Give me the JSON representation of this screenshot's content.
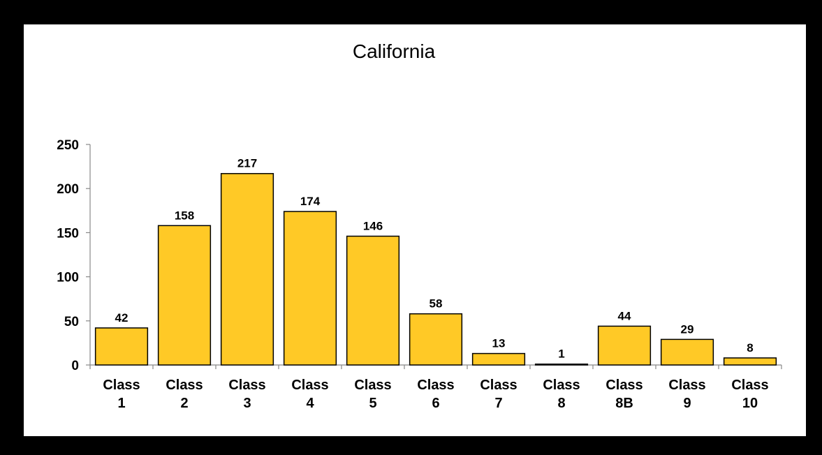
{
  "chart_data": {
    "type": "bar",
    "title": "California",
    "xlabel": "",
    "ylabel": "",
    "ylim": [
      0,
      250
    ],
    "yticks": [
      0,
      50,
      100,
      150,
      200,
      250
    ],
    "grid": false,
    "legend": "none",
    "bar_color": "#FFC926",
    "bar_stroke": "#000000",
    "categories": [
      [
        "Class",
        "1"
      ],
      [
        "Class",
        "2"
      ],
      [
        "Class",
        "3"
      ],
      [
        "Class",
        "4"
      ],
      [
        "Class",
        "5"
      ],
      [
        "Class",
        "6"
      ],
      [
        "Class",
        "7"
      ],
      [
        "Class",
        "8"
      ],
      [
        "Class",
        "8B"
      ],
      [
        "Class",
        "9"
      ],
      [
        "Class",
        "10"
      ]
    ],
    "values": [
      42,
      158,
      217,
      174,
      146,
      58,
      13,
      1,
      44,
      29,
      8
    ]
  }
}
